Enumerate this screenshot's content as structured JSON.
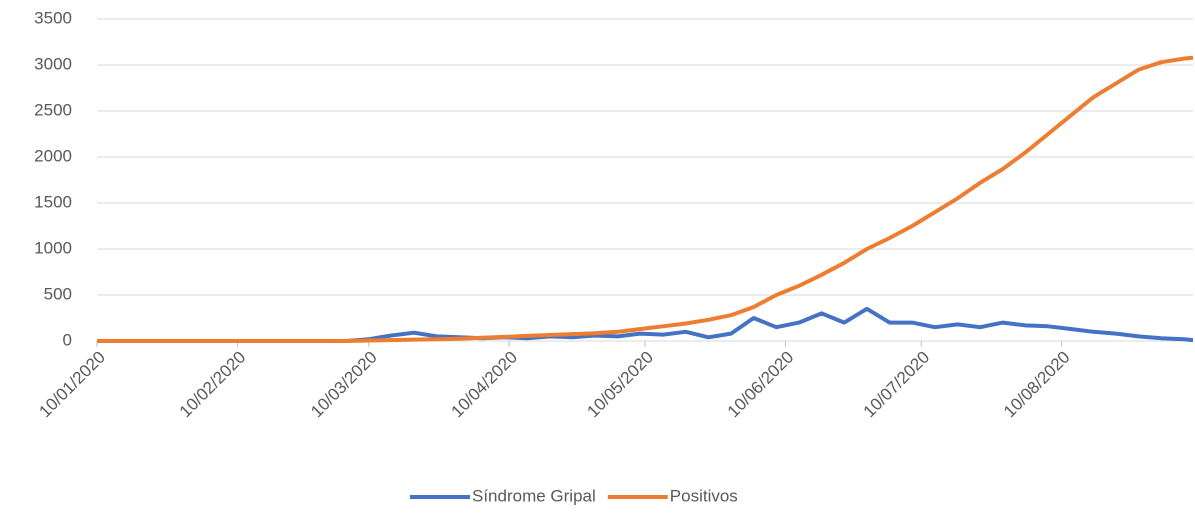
{
  "chart_data": {
    "type": "line",
    "x": [
      "10/01/2020",
      "15/01/2020",
      "20/01/2020",
      "25/01/2020",
      "30/01/2020",
      "04/02/2020",
      "09/02/2020",
      "14/02/2020",
      "19/02/2020",
      "24/02/2020",
      "29/02/2020",
      "05/03/2020",
      "10/03/2020",
      "15/03/2020",
      "20/03/2020",
      "25/03/2020",
      "30/03/2020",
      "04/04/2020",
      "09/04/2020",
      "14/04/2020",
      "19/04/2020",
      "24/04/2020",
      "29/04/2020",
      "04/05/2020",
      "09/05/2020",
      "14/05/2020",
      "19/05/2020",
      "24/05/2020",
      "29/05/2020",
      "03/06/2020",
      "08/06/2020",
      "13/06/2020",
      "18/06/2020",
      "23/06/2020",
      "28/06/2020",
      "03/07/2020",
      "08/07/2020",
      "13/07/2020",
      "18/07/2020",
      "23/07/2020",
      "28/07/2020",
      "02/08/2020",
      "07/08/2020",
      "12/08/2020",
      "17/08/2020",
      "22/08/2020",
      "27/08/2020",
      "01/09/2020",
      "06/09/2020",
      "08/09/2020"
    ],
    "series": [
      {
        "name": "Síndrome Gripal",
        "color": "#4472c4",
        "values": [
          0,
          0,
          0,
          0,
          0,
          0,
          0,
          0,
          0,
          0,
          0,
          0,
          20,
          60,
          90,
          50,
          40,
          30,
          40,
          30,
          50,
          40,
          60,
          50,
          80,
          70,
          100,
          40,
          80,
          250,
          150,
          200,
          300,
          200,
          350,
          200,
          200,
          150,
          180,
          150,
          200,
          170,
          160,
          130,
          100,
          80,
          50,
          30,
          20,
          10
        ]
      },
      {
        "name": "Positivos",
        "color": "#ed7d31",
        "values": [
          0,
          0,
          0,
          0,
          0,
          0,
          0,
          0,
          0,
          0,
          0,
          0,
          5,
          10,
          15,
          20,
          25,
          35,
          45,
          55,
          65,
          75,
          85,
          100,
          130,
          160,
          190,
          230,
          280,
          370,
          500,
          600,
          720,
          850,
          1000,
          1120,
          1250,
          1400,
          1550,
          1720,
          1870,
          2050,
          2250,
          2450,
          2650,
          2800,
          2950,
          3030,
          3070,
          3080
        ]
      }
    ],
    "xlim": [
      "10/01/2020",
      "08/09/2020"
    ],
    "xticks": [
      "10/01/2020",
      "10/02/2020",
      "10/03/2020",
      "10/04/2020",
      "10/05/2020",
      "10/06/2020",
      "10/07/2020",
      "10/08/2020"
    ],
    "ylim": [
      0,
      3500
    ],
    "yticks": [
      0,
      500,
      1000,
      1500,
      2000,
      2500,
      3000,
      3500
    ],
    "grid": true,
    "legend": "bottom"
  }
}
